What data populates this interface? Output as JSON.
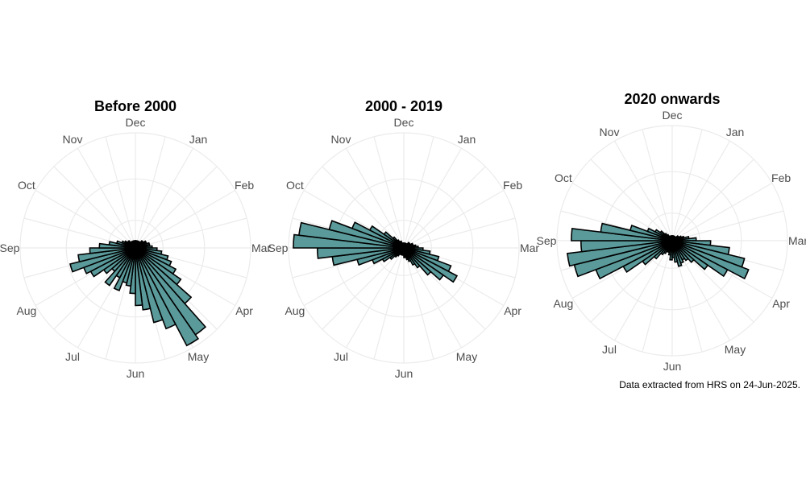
{
  "caption": "Data extracted from HRS on 24-Jun-2025.",
  "colors": {
    "bar_fill": "#5b9a9b",
    "bar_stroke": "#000000",
    "grid": "#ebebeb",
    "label": "#4d4d4d"
  },
  "chart_data": [
    {
      "type": "polar-bar",
      "title": "Before 2000",
      "theta_labels": [
        "Jan",
        "Feb",
        "Mar",
        "Apr",
        "May",
        "Jun",
        "Jul",
        "Aug",
        "Sep",
        "Oct",
        "Nov",
        "Dec"
      ],
      "week_bins": 52,
      "values": [
        0.3,
        0.3,
        0.3,
        0.3,
        0.3,
        0.3,
        0.4,
        0.4,
        0.5,
        0.5,
        0.6,
        0.6,
        0.7,
        0.9,
        1.1,
        1.4,
        1.6,
        1.9,
        2.3,
        3.1,
        4.4,
        4.6,
        3.6,
        3.2,
        2.6,
        2.4,
        1.9,
        1.6,
        1.5,
        1.9,
        1.4,
        1.9,
        1.3,
        1.6,
        2.1,
        2.3,
        2.8,
        2.4,
        1.9,
        1.5,
        1.1,
        0.8,
        0.6,
        0.5,
        0.4,
        0.4,
        0.3,
        0.3,
        0.3,
        0.3,
        0.3,
        0.3
      ],
      "rmax": 4.8
    },
    {
      "type": "polar-bar",
      "title": "2000 - 2019",
      "theta_labels": [
        "Jan",
        "Feb",
        "Mar",
        "Apr",
        "May",
        "Jun",
        "Jul",
        "Aug",
        "Sep",
        "Oct",
        "Nov",
        "Dec"
      ],
      "week_bins": 52,
      "values": [
        0.2,
        0.2,
        0.2,
        0.2,
        0.2,
        0.2,
        0.3,
        0.3,
        0.3,
        0.4,
        0.4,
        0.5,
        0.6,
        0.8,
        1.1,
        1.5,
        2.1,
        2.5,
        2.0,
        1.5,
        1.0,
        0.8,
        0.6,
        0.5,
        0.4,
        0.4,
        0.3,
        0.3,
        0.3,
        0.3,
        0.3,
        0.4,
        0.5,
        0.7,
        1.0,
        1.4,
        2.0,
        3.0,
        3.6,
        4.6,
        4.4,
        3.2,
        2.3,
        1.6,
        1.0,
        0.6,
        0.4,
        0.3,
        0.3,
        0.2,
        0.2,
        0.2
      ],
      "rmax": 4.8
    },
    {
      "type": "polar-bar",
      "title": "2020 onwards",
      "theta_labels": [
        "Jan",
        "Feb",
        "Mar",
        "Apr",
        "May",
        "Jun",
        "Jul",
        "Aug",
        "Sep",
        "Oct",
        "Nov",
        "Dec"
      ],
      "week_bins": 52,
      "values": [
        0.2,
        0.2,
        0.2,
        0.2,
        0.2,
        0.2,
        0.2,
        0.3,
        0.3,
        0.4,
        0.5,
        0.7,
        1.0,
        1.6,
        2.4,
        3.1,
        3.4,
        2.6,
        1.8,
        1.2,
        1.0,
        0.9,
        1.0,
        1.1,
        0.9,
        0.7,
        0.8,
        0.6,
        0.5,
        0.5,
        0.6,
        0.7,
        1.0,
        1.5,
        2.3,
        3.4,
        4.2,
        4.4,
        3.8,
        4.2,
        3.0,
        1.8,
        1.1,
        0.8,
        0.6,
        0.4,
        0.3,
        0.2,
        0.2,
        0.2,
        0.2,
        0.2
      ],
      "rmax": 4.8
    }
  ]
}
